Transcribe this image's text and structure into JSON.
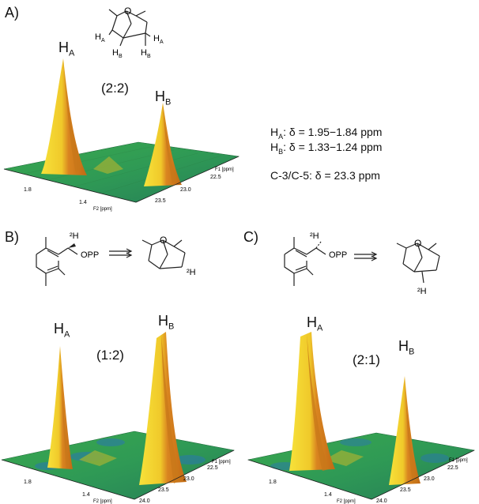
{
  "panels": [
    {
      "label": "A)",
      "peak_a": {
        "letter": "H",
        "sub": "A"
      },
      "peak_b": {
        "letter": "H",
        "sub": "B"
      },
      "ratio": "(2:2)",
      "axis_f1_label": "F1 [ppm]",
      "axis_f2_label": "F2 [ppm]",
      "f1_ticks": [
        "23.0",
        "22.5"
      ],
      "f2_ticks": [
        "1.8",
        "1.4",
        "23.5"
      ],
      "relative_intensity": {
        "H_A": 1.0,
        "H_B": 0.75
      }
    },
    {
      "label": "B)",
      "peak_a": {
        "letter": "H",
        "sub": "A"
      },
      "peak_b": {
        "letter": "H",
        "sub": "B"
      },
      "ratio": "(1:2)",
      "axis_f1_label": "F1 [ppm]",
      "axis_f2_label": "F2 [ppm]",
      "f1_ticks": [
        "23.0",
        "22.5"
      ],
      "f2_ticks": [
        "1.8",
        "1.4",
        "24.0",
        "23.5"
      ],
      "relative_intensity": {
        "H_A": 0.8,
        "H_B": 1.0
      }
    },
    {
      "label": "C)",
      "peak_a": {
        "letter": "H",
        "sub": "A"
      },
      "peak_b": {
        "letter": "H",
        "sub": "B"
      },
      "ratio": "(2:1)",
      "axis_f1_label": "F1 [ppm]",
      "axis_f2_label": "F2 [ppm]",
      "f1_ticks": [
        "23.5",
        "23.0",
        "22.5"
      ],
      "f2_ticks": [
        "1.8",
        "1.4",
        "24.0"
      ],
      "relative_intensity": {
        "H_A": 1.0,
        "H_B": 0.65
      }
    }
  ],
  "shifts": {
    "ha_label": "H",
    "ha_sub": "A",
    "ha_value": ": δ = 1.95−1.84 ppm",
    "hb_label": "H",
    "hb_sub": "B",
    "hb_value": ": δ = 1.33−1.24 ppm",
    "carbon": "C-3/C-5: δ = 23.3 ppm"
  },
  "structures": {
    "a_ha1": "H",
    "a_ha1_sub": "A",
    "a_ha2": "H",
    "a_ha2_sub": "A",
    "a_hb1": "H",
    "a_hb1_sub": "B",
    "a_hb2": "H",
    "a_hb2_sub": "B",
    "a_oxygen": "O",
    "b_deuterium": "²H",
    "b_opp": "OPP",
    "b_oxygen": "O",
    "b_product_deuterium": "²H",
    "c_deuterium": "²H",
    "c_opp": "OPP",
    "c_oxygen": "O",
    "c_product_deuterium": "²H"
  },
  "colors": {
    "base_green": "#2e9a4c",
    "peak_orange": "#d47a18",
    "peak_yellow": "#f2d22a",
    "pit_blue": "#2a7aa8"
  }
}
